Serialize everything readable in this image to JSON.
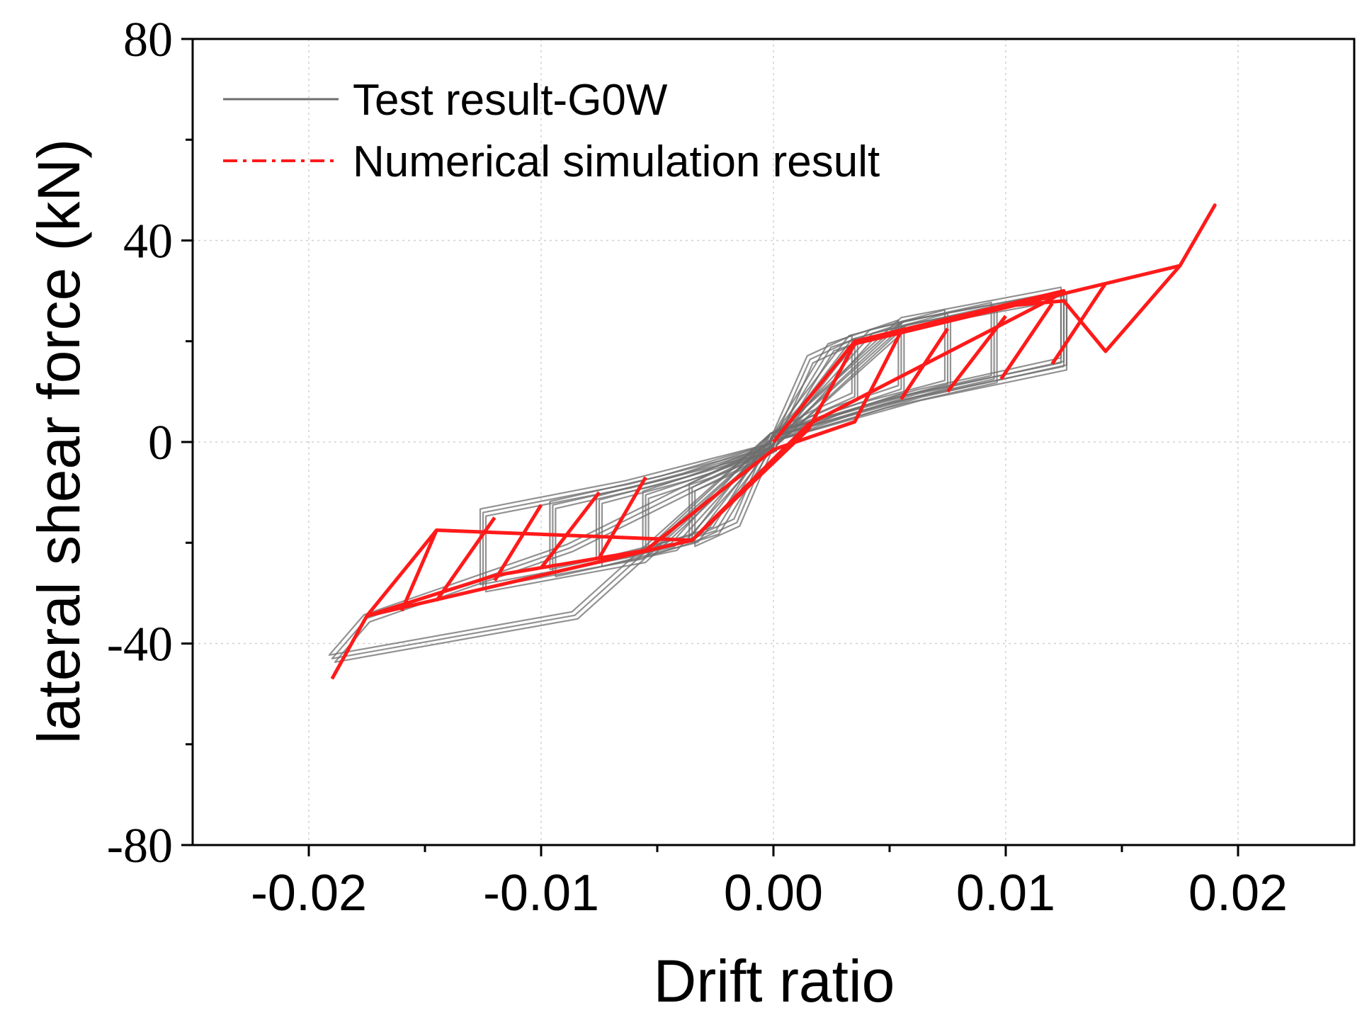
{
  "chart_data": {
    "type": "line",
    "title": "",
    "xlabel": "Drift ratio",
    "ylabel": "lateral shear force (kN)",
    "xlim": [
      -0.025,
      0.025
    ],
    "ylim": [
      -80,
      80
    ],
    "xticks": [
      -0.02,
      -0.01,
      0.0,
      0.01,
      0.02
    ],
    "xtick_labels": [
      "-0.02",
      "-0.01",
      "0.00",
      "0.01",
      "0.02"
    ],
    "yticks": [
      -80,
      -40,
      0,
      40,
      80
    ],
    "ytick_labels": [
      "-80",
      "-40",
      "0",
      "40",
      "80"
    ],
    "grid": true,
    "legend_position": "top-left",
    "colors": {
      "test": "#6e6e6e",
      "simulation": "#ff1a1a",
      "axis": "#000000",
      "grid": "#d0d0d0"
    },
    "series": [
      {
        "name": "Test result-G0W",
        "style": "solid",
        "approximate": true,
        "loops": [
          {
            "peak_pos": [
              0.0035,
              20.5
            ],
            "peak_neg": [
              -0.0035,
              -20.0
            ],
            "unload_pos": [
              0.0035,
              9.0
            ],
            "unload_neg": [
              -0.0035,
              -9.0
            ]
          },
          {
            "peak_pos": [
              0.0055,
              23.5
            ],
            "peak_neg": [
              -0.0055,
              -22.0
            ],
            "unload_pos": [
              0.0055,
              10.5
            ],
            "unload_neg": [
              -0.0055,
              -10.5
            ]
          },
          {
            "peak_pos": [
              0.0075,
              25.5
            ],
            "peak_neg": [
              -0.0075,
              -24.0
            ],
            "unload_pos": [
              0.0075,
              11.5
            ],
            "unload_neg": [
              -0.0075,
              -11.5
            ]
          },
          {
            "peak_pos": [
              0.0095,
              27.0
            ],
            "peak_neg": [
              -0.0095,
              -26.0
            ],
            "unload_pos": [
              0.0095,
              12.5
            ],
            "unload_neg": [
              -0.0095,
              -12.5
            ]
          },
          {
            "peak_pos": [
              0.0125,
              30.0
            ],
            "peak_neg": [
              -0.0125,
              -29.0
            ],
            "unload_pos": [
              0.0125,
              15.0
            ],
            "unload_neg": [
              -0.0125,
              -14.0
            ]
          },
          {
            "peak_pos": [
              0.0125,
              29.0
            ],
            "peak_neg": [
              -0.019,
              -43.0
            ],
            "unload_pos": [
              0.0125,
              16.0
            ],
            "unload_neg": [
              -0.0175,
              -35.0
            ]
          }
        ]
      },
      {
        "name": "Numerical simulation result",
        "style": "dash-dot",
        "points": [
          [
            0.0,
            0.0
          ],
          [
            0.0035,
            20.0
          ],
          [
            0.0125,
            30.0
          ],
          [
            0.012,
            28.5
          ],
          [
            0.0015,
            3.5
          ],
          [
            -0.0035,
            -19.5
          ],
          [
            -0.0145,
            -17.5
          ],
          [
            -0.0175,
            -34.5
          ],
          [
            -0.012,
            -26.5
          ],
          [
            -0.0055,
            -21.5
          ],
          [
            0.0,
            -1.5
          ],
          [
            0.0035,
            4.0
          ],
          [
            0.0055,
            22.0
          ],
          [
            0.01,
            27.0
          ],
          [
            0.0125,
            28.0
          ],
          [
            0.0143,
            18.0
          ],
          [
            0.0175,
            35.0
          ],
          [
            0.019,
            47.0
          ],
          [
            0.0175,
            35.0
          ],
          [
            0.0035,
            19.5
          ],
          [
            0.0015,
            2.5
          ],
          [
            -0.0035,
            -19.5
          ],
          [
            -0.0175,
            -34.5
          ],
          [
            -0.019,
            -47.0
          ]
        ],
        "inner_branches": [
          [
            [
              0.0055,
              8.5
            ],
            [
              0.0075,
              22.5
            ]
          ],
          [
            [
              0.0075,
              10.0
            ],
            [
              0.01,
              25.0
            ]
          ],
          [
            [
              0.0098,
              12.5
            ],
            [
              0.012,
              27.5
            ]
          ],
          [
            [
              0.012,
              15.5
            ],
            [
              0.0143,
              31.5
            ]
          ],
          [
            [
              -0.0055,
              -7.0
            ],
            [
              -0.0075,
              -23.0
            ]
          ],
          [
            [
              -0.0075,
              -10.0
            ],
            [
              -0.01,
              -25.0
            ]
          ],
          [
            [
              -0.01,
              -12.5
            ],
            [
              -0.012,
              -27.5
            ]
          ],
          [
            [
              -0.012,
              -15.0
            ],
            [
              -0.0145,
              -31.5
            ]
          ],
          [
            [
              -0.0145,
              -17.5
            ],
            [
              -0.016,
              -33.5
            ]
          ]
        ]
      }
    ]
  }
}
